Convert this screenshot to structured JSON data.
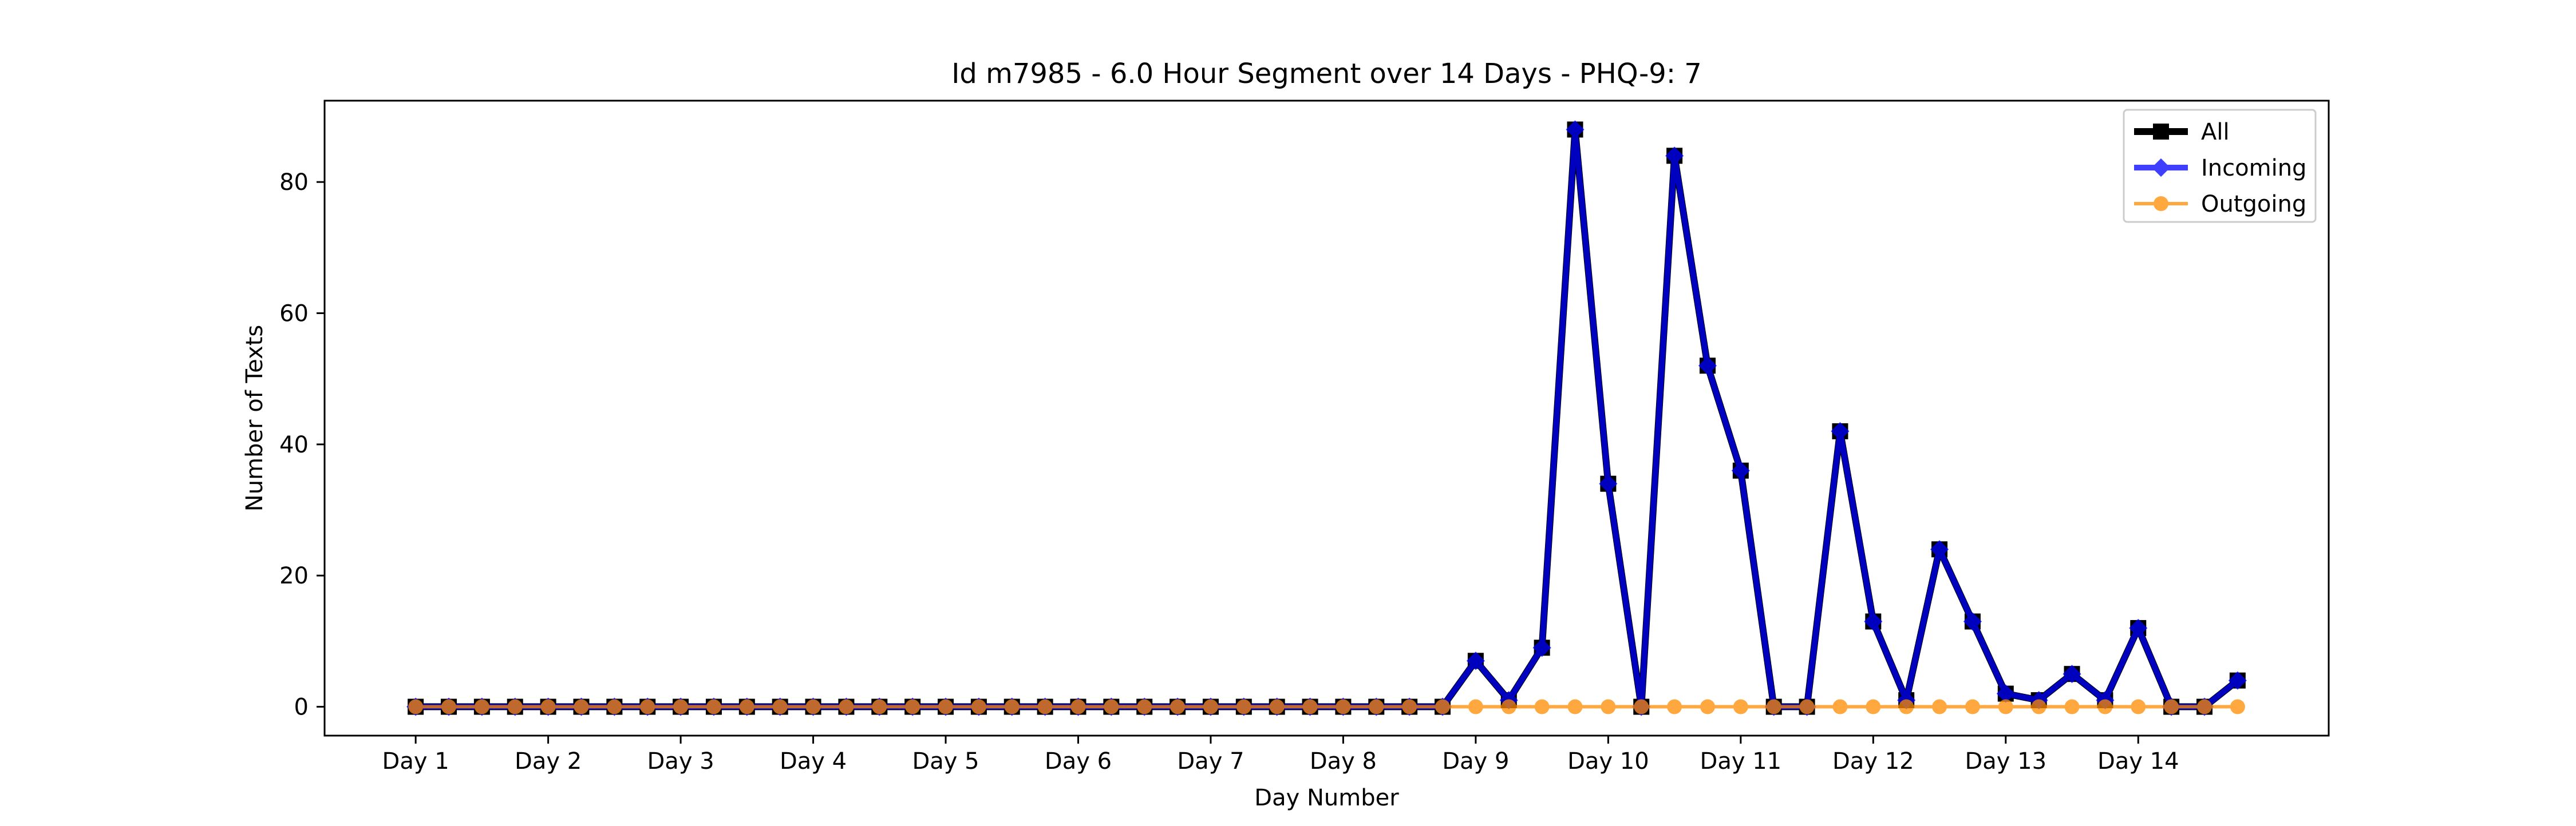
{
  "chart_data": {
    "type": "line",
    "title": "Id m7985 - 6.0 Hour Segment over 14 Days - PHQ-9: 7",
    "xlabel": "Day Number",
    "ylabel": "Number of Texts",
    "x_ticks": [
      {
        "x": 0,
        "label": "Day 1"
      },
      {
        "x": 4,
        "label": "Day 2"
      },
      {
        "x": 8,
        "label": "Day 3"
      },
      {
        "x": 12,
        "label": "Day 4"
      },
      {
        "x": 16,
        "label": "Day 5"
      },
      {
        "x": 20,
        "label": "Day 6"
      },
      {
        "x": 24,
        "label": "Day 7"
      },
      {
        "x": 28,
        "label": "Day 8"
      },
      {
        "x": 32,
        "label": "Day 9"
      },
      {
        "x": 36,
        "label": "Day 10"
      },
      {
        "x": 40,
        "label": "Day 11"
      },
      {
        "x": 44,
        "label": "Day 12"
      },
      {
        "x": 48,
        "label": "Day 13"
      },
      {
        "x": 52,
        "label": "Day 14"
      }
    ],
    "xlim": [
      -2.75,
      57.75
    ],
    "ylim": [
      -4.4,
      92.4
    ],
    "y_ticks": [
      0,
      20,
      40,
      60,
      80
    ],
    "grid": false,
    "legend_position": "top-right",
    "series": [
      {
        "name": "All",
        "color": "#000000",
        "marker": "square",
        "values": [
          0,
          0,
          0,
          0,
          0,
          0,
          0,
          0,
          0,
          0,
          0,
          0,
          0,
          0,
          0,
          0,
          0,
          0,
          0,
          0,
          0,
          0,
          0,
          0,
          0,
          0,
          0,
          0,
          0,
          0,
          0,
          0,
          7,
          1,
          9,
          88,
          34,
          0,
          84,
          52,
          36,
          0,
          0,
          42,
          13,
          1,
          24,
          13,
          2,
          1,
          5,
          1,
          12,
          0,
          0,
          4
        ]
      },
      {
        "name": "Incoming",
        "color": "#0000ff",
        "marker": "diamond",
        "values": [
          0,
          0,
          0,
          0,
          0,
          0,
          0,
          0,
          0,
          0,
          0,
          0,
          0,
          0,
          0,
          0,
          0,
          0,
          0,
          0,
          0,
          0,
          0,
          0,
          0,
          0,
          0,
          0,
          0,
          0,
          0,
          0,
          7,
          1,
          9,
          88,
          34,
          0,
          84,
          52,
          36,
          0,
          0,
          42,
          13,
          1,
          24,
          13,
          2,
          1,
          5,
          1,
          12,
          0,
          0,
          4
        ]
      },
      {
        "name": "Outgoing",
        "color": "#ff8c00",
        "marker": "circle",
        "values": [
          0,
          0,
          0,
          0,
          0,
          0,
          0,
          0,
          0,
          0,
          0,
          0,
          0,
          0,
          0,
          0,
          0,
          0,
          0,
          0,
          0,
          0,
          0,
          0,
          0,
          0,
          0,
          0,
          0,
          0,
          0,
          0,
          0,
          0,
          0,
          0,
          0,
          0,
          0,
          0,
          0,
          0,
          0,
          0,
          0,
          0,
          0,
          0,
          0,
          0,
          0,
          0,
          0,
          0,
          0,
          0
        ]
      }
    ]
  }
}
